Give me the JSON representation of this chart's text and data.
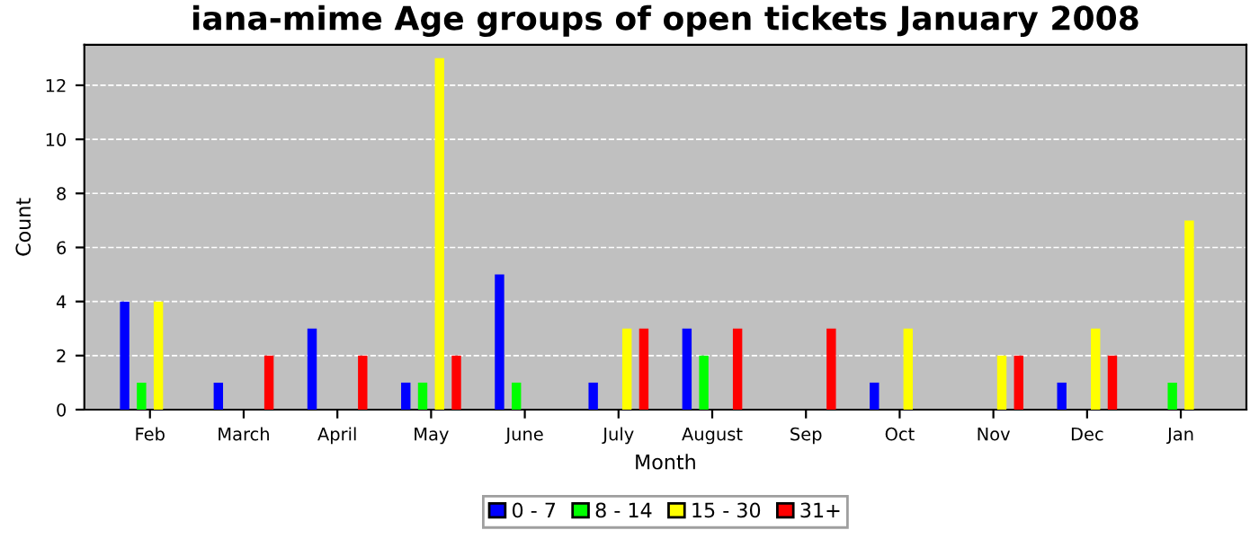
{
  "chart_data": {
    "type": "bar",
    "title": "iana-mime Age groups of open tickets January 2008",
    "xlabel": "Month",
    "ylabel": "Count",
    "categories": [
      "Feb",
      "March",
      "April",
      "May",
      "June",
      "July",
      "August",
      "Sep",
      "Oct",
      "Nov",
      "Dec",
      "Jan"
    ],
    "series": [
      {
        "name": "0 - 7",
        "color": "#0000ff",
        "values": [
          4,
          1,
          3,
          1,
          5,
          1,
          3,
          0,
          1,
          0,
          1,
          0
        ]
      },
      {
        "name": "8 - 14",
        "color": "#00ff00",
        "values": [
          1,
          0,
          0,
          1,
          1,
          0,
          2,
          0,
          0,
          0,
          0,
          1
        ]
      },
      {
        "name": "15 - 30",
        "color": "#ffff00",
        "values": [
          4,
          0,
          0,
          13,
          0,
          3,
          0,
          0,
          3,
          2,
          3,
          7
        ]
      },
      {
        "name": "31+",
        "color": "#ff0000",
        "values": [
          0,
          2,
          2,
          2,
          0,
          3,
          3,
          3,
          0,
          2,
          2,
          0
        ]
      }
    ],
    "ylim": [
      0,
      13.5
    ],
    "yticks": [
      0,
      2,
      4,
      6,
      8,
      10,
      12
    ],
    "grid": "y",
    "legend": "bottom"
  }
}
